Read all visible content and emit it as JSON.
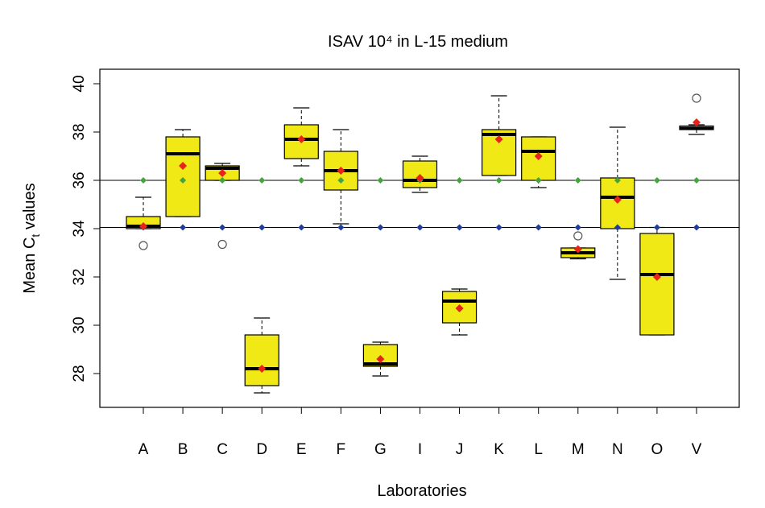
{
  "chart_data": {
    "type": "box",
    "title": "ISAV 10⁴ in L-15 medium",
    "xlabel": "Laboratories",
    "ylabel": {
      "base": "Mean C",
      "subscript": "t",
      "rest": " values"
    },
    "ylim": [
      26.6,
      40.6
    ],
    "yticks": [
      28,
      30,
      32,
      34,
      36,
      38,
      40
    ],
    "grid": false,
    "reference_lines": [
      36,
      34.05
    ],
    "colors": {
      "box_fill": "#f0e916",
      "median": "#000000",
      "mean_marker": "#e8231c",
      "green_marker": "#45a43e",
      "blue_marker": "#1f3d99",
      "outlier": "#888888"
    },
    "categories": [
      "A",
      "B",
      "C",
      "D",
      "E",
      "F",
      "G",
      "I",
      "J",
      "K",
      "L",
      "M",
      "N",
      "O",
      "V"
    ],
    "boxes": [
      {
        "lab": "A",
        "whisker_low": 34.0,
        "q1": 34.0,
        "median": 34.1,
        "q3": 34.5,
        "whisker_high": 35.3,
        "mean": 34.1,
        "green": 36.0,
        "blue": 34.05,
        "outliers": [
          33.3
        ]
      },
      {
        "lab": "B",
        "whisker_low": 34.5,
        "q1": 34.5,
        "median": 37.1,
        "q3": 37.8,
        "whisker_high": 38.1,
        "mean": 36.6,
        "green": 36.0,
        "blue": 34.05,
        "outliers": []
      },
      {
        "lab": "C",
        "whisker_low": 36.0,
        "q1": 36.0,
        "median": 36.5,
        "q3": 36.6,
        "whisker_high": 36.7,
        "mean": 36.3,
        "green": 36.0,
        "blue": 34.05,
        "outliers": [
          33.35
        ]
      },
      {
        "lab": "D",
        "whisker_low": 27.2,
        "q1": 27.5,
        "median": 28.2,
        "q3": 29.6,
        "whisker_high": 30.3,
        "mean": 28.2,
        "green": 36.0,
        "blue": 34.05,
        "outliers": []
      },
      {
        "lab": "E",
        "whisker_low": 36.6,
        "q1": 36.9,
        "median": 37.7,
        "q3": 38.3,
        "whisker_high": 39.0,
        "mean": 37.7,
        "green": 36.0,
        "blue": 34.05,
        "outliers": []
      },
      {
        "lab": "F",
        "whisker_low": 34.2,
        "q1": 35.6,
        "median": 36.4,
        "q3": 37.2,
        "whisker_high": 38.1,
        "mean": 36.4,
        "green": 36.0,
        "blue": 34.05,
        "outliers": []
      },
      {
        "lab": "G",
        "whisker_low": 27.9,
        "q1": 28.3,
        "median": 28.4,
        "q3": 29.2,
        "whisker_high": 29.3,
        "mean": 28.6,
        "green": 36.0,
        "blue": 34.05,
        "outliers": []
      },
      {
        "lab": "I",
        "whisker_low": 35.5,
        "q1": 35.7,
        "median": 36.0,
        "q3": 36.8,
        "whisker_high": 37.0,
        "mean": 36.1,
        "green": 36.0,
        "blue": 34.05,
        "outliers": []
      },
      {
        "lab": "J",
        "whisker_low": 29.6,
        "q1": 30.1,
        "median": 31.0,
        "q3": 31.4,
        "whisker_high": 31.5,
        "mean": 30.7,
        "green": 36.0,
        "blue": 34.05,
        "outliers": []
      },
      {
        "lab": "K",
        "whisker_low": 36.2,
        "q1": 36.2,
        "median": 37.9,
        "q3": 38.1,
        "whisker_high": 39.5,
        "mean": 37.7,
        "green": 36.0,
        "blue": 34.05,
        "outliers": []
      },
      {
        "lab": "L",
        "whisker_low": 35.7,
        "q1": 36.0,
        "median": 37.2,
        "q3": 37.8,
        "whisker_high": 37.8,
        "mean": 37.0,
        "green": 36.0,
        "blue": 34.05,
        "outliers": []
      },
      {
        "lab": "M",
        "whisker_low": 32.75,
        "q1": 32.8,
        "median": 33.0,
        "q3": 33.2,
        "whisker_high": 33.2,
        "mean": 33.15,
        "green": 36.0,
        "blue": 34.05,
        "outliers": [
          33.7
        ]
      },
      {
        "lab": "N",
        "whisker_low": 31.9,
        "q1": 34.0,
        "median": 35.3,
        "q3": 36.1,
        "whisker_high": 38.2,
        "mean": 35.2,
        "green": 36.0,
        "blue": 34.05,
        "outliers": []
      },
      {
        "lab": "O",
        "whisker_low": 29.6,
        "q1": 29.6,
        "median": 32.1,
        "q3": 33.8,
        "whisker_high": 34.05,
        "mean": 32.0,
        "green": 36.0,
        "blue": 34.05,
        "outliers": []
      },
      {
        "lab": "V",
        "whisker_low": 37.9,
        "q1": 38.1,
        "median": 38.15,
        "q3": 38.25,
        "whisker_high": 38.3,
        "mean": 38.4,
        "green": 36.0,
        "blue": 34.05,
        "outliers": [
          39.4
        ]
      }
    ]
  }
}
